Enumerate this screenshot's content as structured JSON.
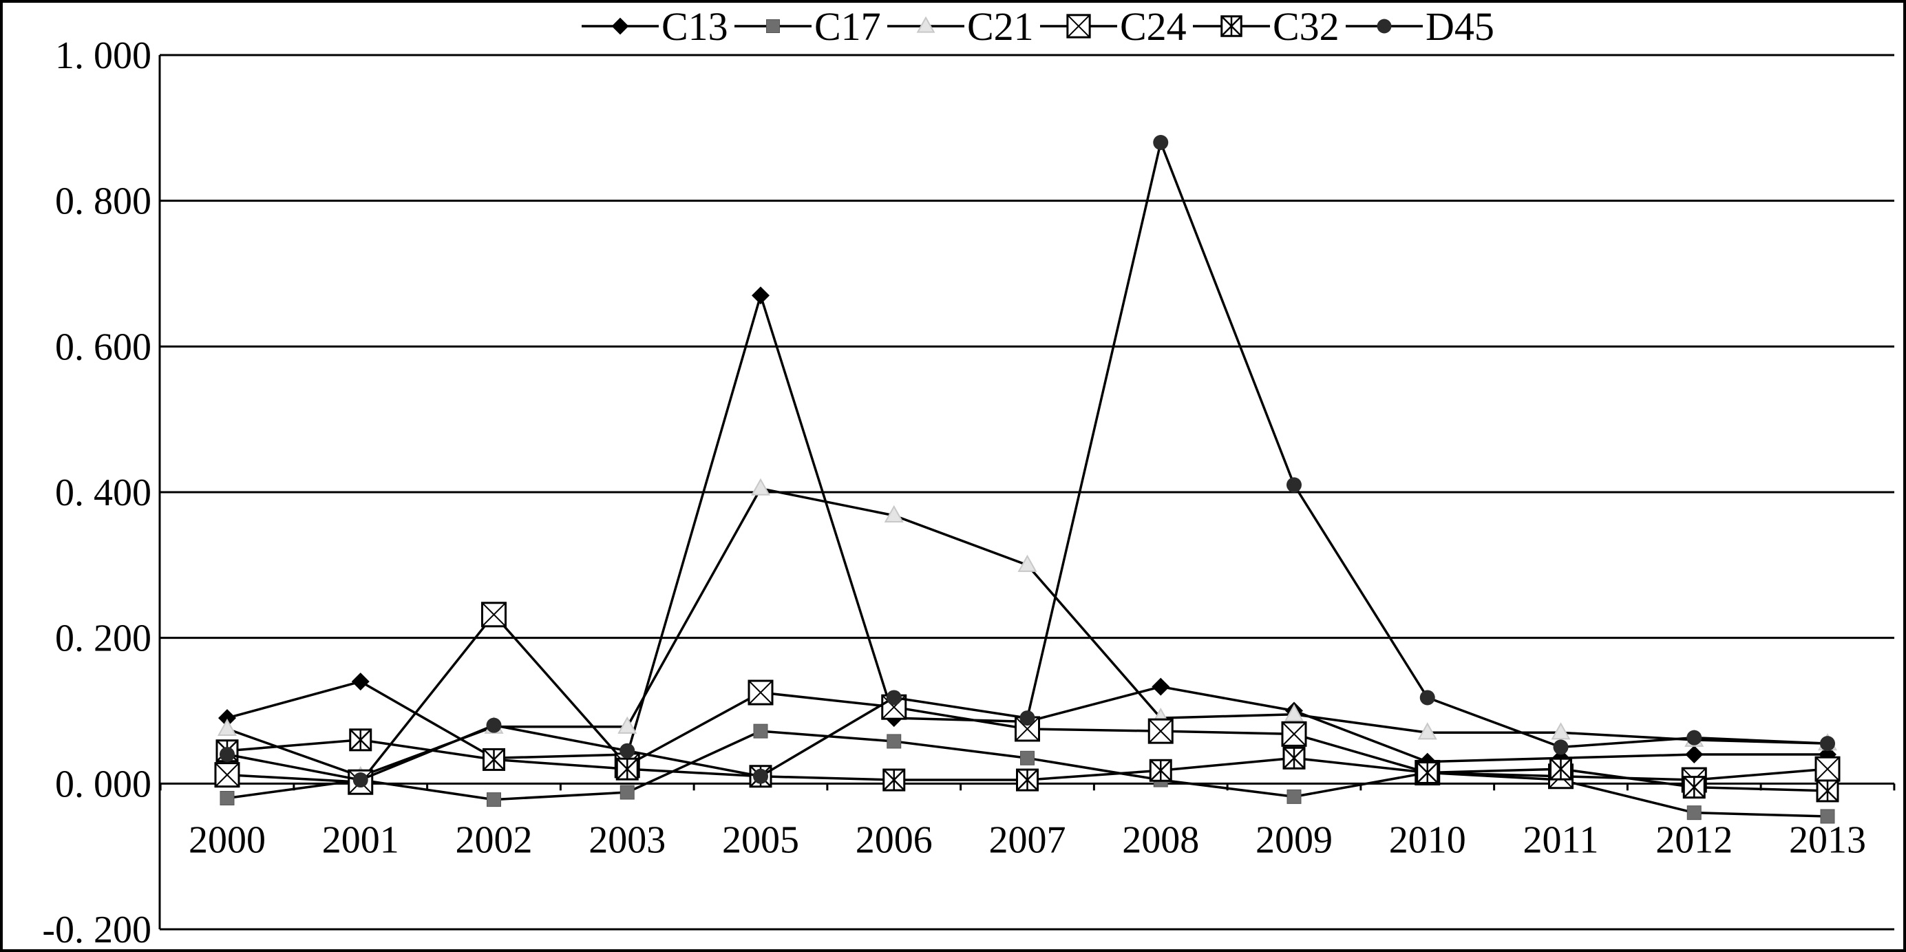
{
  "chart_data": {
    "type": "line",
    "title": "",
    "xlabel": "",
    "ylabel": "",
    "categories": [
      "2000",
      "2001",
      "2002",
      "2003",
      "2005",
      "2006",
      "2007",
      "2008",
      "2009",
      "2010",
      "2011",
      "2012",
      "2013"
    ],
    "ylim": [
      -0.2,
      1.0
    ],
    "yticks": [
      1.0,
      0.8,
      0.6,
      0.4,
      0.2,
      0.0,
      -0.2
    ],
    "ytick_labels": [
      "1. 000",
      "0. 800",
      "0. 600",
      "0. 400",
      "0. 200",
      "0. 000",
      "-0. 200"
    ],
    "grid": "horizontal",
    "legend_position": "top",
    "series": [
      {
        "name": "C13",
        "marker": "diamond",
        "values": [
          0.09,
          0.14,
          0.035,
          0.04,
          0.67,
          0.09,
          0.085,
          0.133,
          0.1,
          0.03,
          0.035,
          0.04,
          0.04
        ]
      },
      {
        "name": "C17",
        "marker": "square-filled",
        "values": [
          -0.02,
          0.005,
          -0.022,
          -0.012,
          0.072,
          0.058,
          0.035,
          0.005,
          -0.018,
          0.015,
          0.005,
          -0.04,
          -0.045
        ]
      },
      {
        "name": "C21",
        "marker": "triangle-open",
        "values": [
          0.075,
          0.01,
          0.078,
          0.078,
          0.405,
          0.368,
          0.3,
          0.09,
          0.095,
          0.07,
          0.07,
          0.06,
          0.055
        ]
      },
      {
        "name": "C24",
        "marker": "square-x",
        "values": [
          0.012,
          0.002,
          0.232,
          0.025,
          0.125,
          0.105,
          0.075,
          0.072,
          0.068,
          0.015,
          0.01,
          0.005,
          0.02
        ]
      },
      {
        "name": "C32",
        "marker": "square-asterisk",
        "values": [
          0.045,
          0.06,
          0.033,
          0.02,
          0.01,
          0.005,
          0.005,
          0.018,
          0.035,
          0.015,
          0.02,
          -0.005,
          -0.01
        ]
      },
      {
        "name": "D45",
        "marker": "circle",
        "values": [
          0.04,
          0.005,
          0.08,
          0.045,
          0.01,
          0.118,
          0.09,
          0.88,
          0.41,
          0.118,
          0.05,
          0.063,
          0.055
        ]
      }
    ]
  }
}
